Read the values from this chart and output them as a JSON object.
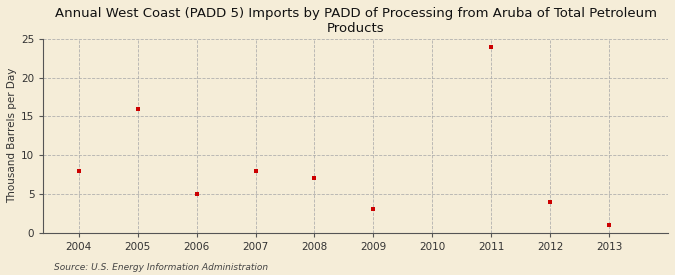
{
  "title": "Annual West Coast (PADD 5) Imports by PADD of Processing from Aruba of Total Petroleum\nProducts",
  "ylabel": "Thousand Barrels per Day",
  "source": "Source: U.S. Energy Information Administration",
  "x": [
    2004,
    2005,
    2006,
    2007,
    2008,
    2009,
    2011,
    2012,
    2013
  ],
  "y": [
    8,
    16,
    5,
    8,
    7,
    3,
    24,
    4,
    1
  ],
  "xlim": [
    2003.4,
    2014.0
  ],
  "ylim": [
    0,
    25
  ],
  "yticks": [
    0,
    5,
    10,
    15,
    20,
    25
  ],
  "xticks": [
    2004,
    2005,
    2006,
    2007,
    2008,
    2009,
    2010,
    2011,
    2012,
    2013
  ],
  "marker_color": "#cc0000",
  "marker": "s",
  "marker_size": 3.5,
  "background_color": "#f5edd8",
  "grid_color": "#aaaaaa",
  "title_fontsize": 9.5,
  "axis_label_fontsize": 7.5,
  "tick_fontsize": 7.5,
  "source_fontsize": 6.5
}
